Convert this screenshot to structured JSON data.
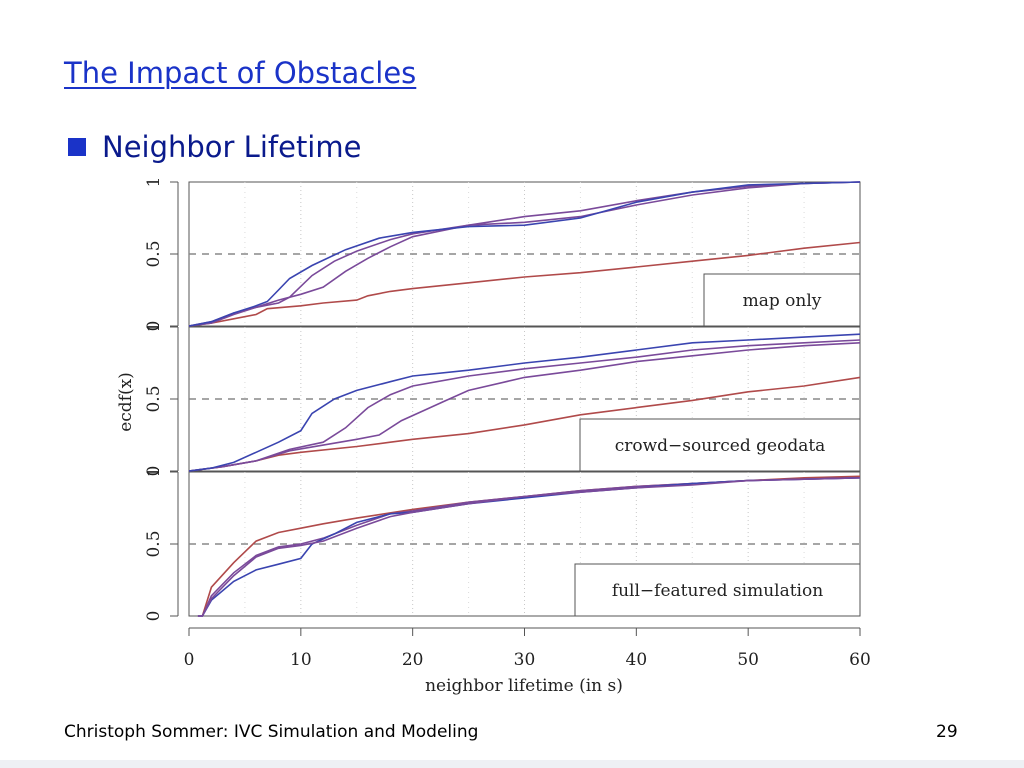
{
  "slide": {
    "title": "The Impact of Obstacles",
    "bullet": "Neighbor Lifetime",
    "footer_left": "Christoph Sommer: IVC Simulation and Modeling",
    "page_number": "29"
  },
  "colors": {
    "accent": "#1a33c8",
    "red_series": "#b04a4a",
    "blue_series": "#3a44b0",
    "purple_series": "#7a4a9a"
  },
  "chart_data": {
    "type": "line",
    "xlabel": "neighbor lifetime (in s)",
    "ylabel": "ecdf(x)",
    "xlim": [
      0,
      60
    ],
    "ylim": [
      0,
      1
    ],
    "x_ticks": [
      0,
      10,
      20,
      30,
      40,
      50,
      60
    ],
    "y_tick_labels": [
      "0",
      "0.5",
      "1"
    ],
    "reference_line": 0.5,
    "grid": "vertical dotted at x ticks",
    "panels": [
      {
        "label": "map only",
        "series": [
          {
            "color": "red",
            "points": [
              [
                0,
                0
              ],
              [
                2,
                0.02
              ],
              [
                4,
                0.05
              ],
              [
                6,
                0.08
              ],
              [
                7,
                0.12
              ],
              [
                10,
                0.14
              ],
              [
                12,
                0.16
              ],
              [
                15,
                0.18
              ],
              [
                16,
                0.21
              ],
              [
                18,
                0.24
              ],
              [
                20,
                0.26
              ],
              [
                25,
                0.3
              ],
              [
                30,
                0.34
              ],
              [
                35,
                0.37
              ],
              [
                40,
                0.41
              ],
              [
                45,
                0.45
              ],
              [
                50,
                0.49
              ],
              [
                55,
                0.54
              ],
              [
                60,
                0.58
              ]
            ]
          },
          {
            "color": "purple",
            "points": [
              [
                0,
                0
              ],
              [
                2,
                0.03
              ],
              [
                4,
                0.09
              ],
              [
                6,
                0.13
              ],
              [
                8,
                0.18
              ],
              [
                10,
                0.22
              ],
              [
                12,
                0.27
              ],
              [
                14,
                0.38
              ],
              [
                16,
                0.47
              ],
              [
                18,
                0.55
              ],
              [
                20,
                0.62
              ],
              [
                25,
                0.7
              ],
              [
                30,
                0.76
              ],
              [
                35,
                0.8
              ],
              [
                40,
                0.87
              ],
              [
                45,
                0.93
              ],
              [
                50,
                0.97
              ],
              [
                55,
                0.99
              ],
              [
                60,
                1.0
              ]
            ]
          },
          {
            "color": "purple",
            "points": [
              [
                0,
                0
              ],
              [
                2,
                0.02
              ],
              [
                4,
                0.08
              ],
              [
                6,
                0.13
              ],
              [
                8,
                0.16
              ],
              [
                9,
                0.2
              ],
              [
                11,
                0.35
              ],
              [
                13,
                0.45
              ],
              [
                15,
                0.52
              ],
              [
                18,
                0.6
              ],
              [
                20,
                0.64
              ],
              [
                25,
                0.7
              ],
              [
                30,
                0.72
              ],
              [
                35,
                0.76
              ],
              [
                40,
                0.84
              ],
              [
                45,
                0.91
              ],
              [
                50,
                0.96
              ],
              [
                55,
                0.99
              ],
              [
                60,
                1.0
              ]
            ]
          },
          {
            "color": "blue",
            "points": [
              [
                0,
                0
              ],
              [
                2,
                0.03
              ],
              [
                4,
                0.09
              ],
              [
                6,
                0.14
              ],
              [
                7,
                0.17
              ],
              [
                8,
                0.25
              ],
              [
                9,
                0.33
              ],
              [
                11,
                0.42
              ],
              [
                14,
                0.53
              ],
              [
                17,
                0.61
              ],
              [
                20,
                0.65
              ],
              [
                25,
                0.69
              ],
              [
                30,
                0.7
              ],
              [
                35,
                0.75
              ],
              [
                40,
                0.86
              ],
              [
                45,
                0.93
              ],
              [
                50,
                0.98
              ],
              [
                55,
                0.99
              ],
              [
                60,
                1.0
              ]
            ]
          }
        ]
      },
      {
        "label": "crowd−sourced geodata",
        "series": [
          {
            "color": "red",
            "points": [
              [
                0,
                0
              ],
              [
                3,
                0.03
              ],
              [
                6,
                0.07
              ],
              [
                8,
                0.11
              ],
              [
                10,
                0.13
              ],
              [
                15,
                0.17
              ],
              [
                18,
                0.2
              ],
              [
                20,
                0.22
              ],
              [
                25,
                0.26
              ],
              [
                30,
                0.32
              ],
              [
                35,
                0.39
              ],
              [
                40,
                0.44
              ],
              [
                45,
                0.49
              ],
              [
                50,
                0.55
              ],
              [
                55,
                0.59
              ],
              [
                60,
                0.65
              ]
            ]
          },
          {
            "color": "purple",
            "points": [
              [
                0,
                0
              ],
              [
                3,
                0.03
              ],
              [
                6,
                0.07
              ],
              [
                9,
                0.14
              ],
              [
                12,
                0.18
              ],
              [
                15,
                0.22
              ],
              [
                17,
                0.25
              ],
              [
                19,
                0.35
              ],
              [
                21,
                0.42
              ],
              [
                23,
                0.49
              ],
              [
                25,
                0.56
              ],
              [
                30,
                0.65
              ],
              [
                35,
                0.7
              ],
              [
                40,
                0.76
              ],
              [
                45,
                0.8
              ],
              [
                50,
                0.84
              ],
              [
                55,
                0.87
              ],
              [
                60,
                0.89
              ]
            ]
          },
          {
            "color": "purple",
            "points": [
              [
                0,
                0
              ],
              [
                3,
                0.03
              ],
              [
                6,
                0.07
              ],
              [
                9,
                0.15
              ],
              [
                12,
                0.2
              ],
              [
                14,
                0.3
              ],
              [
                16,
                0.44
              ],
              [
                18,
                0.53
              ],
              [
                20,
                0.59
              ],
              [
                25,
                0.66
              ],
              [
                30,
                0.71
              ],
              [
                35,
                0.75
              ],
              [
                40,
                0.79
              ],
              [
                45,
                0.84
              ],
              [
                50,
                0.87
              ],
              [
                55,
                0.89
              ],
              [
                60,
                0.91
              ]
            ]
          },
          {
            "color": "blue",
            "points": [
              [
                0,
                0
              ],
              [
                2,
                0.02
              ],
              [
                4,
                0.06
              ],
              [
                6,
                0.13
              ],
              [
                8,
                0.2
              ],
              [
                10,
                0.28
              ],
              [
                11,
                0.4
              ],
              [
                13,
                0.5
              ],
              [
                15,
                0.56
              ],
              [
                18,
                0.62
              ],
              [
                20,
                0.66
              ],
              [
                25,
                0.7
              ],
              [
                30,
                0.75
              ],
              [
                35,
                0.79
              ],
              [
                40,
                0.84
              ],
              [
                45,
                0.89
              ],
              [
                50,
                0.91
              ],
              [
                55,
                0.93
              ],
              [
                60,
                0.95
              ]
            ]
          }
        ]
      },
      {
        "label": "full−featured simulation",
        "series": [
          {
            "color": "red",
            "points": [
              [
                0.8,
                0
              ],
              [
                1.2,
                0
              ],
              [
                2,
                0.2
              ],
              [
                4,
                0.37
              ],
              [
                6,
                0.52
              ],
              [
                8,
                0.58
              ],
              [
                10,
                0.61
              ],
              [
                12,
                0.64
              ],
              [
                15,
                0.68
              ],
              [
                20,
                0.74
              ],
              [
                25,
                0.79
              ],
              [
                30,
                0.83
              ],
              [
                35,
                0.87
              ],
              [
                40,
                0.9
              ],
              [
                45,
                0.92
              ],
              [
                50,
                0.94
              ],
              [
                55,
                0.96
              ],
              [
                60,
                0.97
              ]
            ]
          },
          {
            "color": "purple",
            "points": [
              [
                0.8,
                0
              ],
              [
                1.2,
                0
              ],
              [
                2,
                0.14
              ],
              [
                4,
                0.3
              ],
              [
                6,
                0.42
              ],
              [
                8,
                0.48
              ],
              [
                10,
                0.5
              ],
              [
                12,
                0.54
              ],
              [
                15,
                0.63
              ],
              [
                18,
                0.71
              ],
              [
                20,
                0.73
              ],
              [
                25,
                0.79
              ],
              [
                30,
                0.83
              ],
              [
                35,
                0.87
              ],
              [
                40,
                0.9
              ],
              [
                45,
                0.92
              ],
              [
                50,
                0.94
              ],
              [
                55,
                0.95
              ],
              [
                60,
                0.96
              ]
            ]
          },
          {
            "color": "blue",
            "points": [
              [
                0.8,
                0
              ],
              [
                1.2,
                0
              ],
              [
                2,
                0.11
              ],
              [
                4,
                0.24
              ],
              [
                6,
                0.32
              ],
              [
                8,
                0.36
              ],
              [
                10,
                0.4
              ],
              [
                11,
                0.5
              ],
              [
                13,
                0.57
              ],
              [
                15,
                0.65
              ],
              [
                18,
                0.71
              ],
              [
                20,
                0.72
              ],
              [
                25,
                0.78
              ],
              [
                30,
                0.82
              ],
              [
                35,
                0.86
              ],
              [
                40,
                0.89
              ],
              [
                45,
                0.92
              ],
              [
                50,
                0.94
              ],
              [
                55,
                0.95
              ],
              [
                60,
                0.96
              ]
            ]
          },
          {
            "color": "purple",
            "points": [
              [
                0.8,
                0
              ],
              [
                1.2,
                0
              ],
              [
                2,
                0.12
              ],
              [
                4,
                0.28
              ],
              [
                6,
                0.41
              ],
              [
                8,
                0.47
              ],
              [
                10,
                0.49
              ],
              [
                12,
                0.52
              ],
              [
                15,
                0.61
              ],
              [
                18,
                0.69
              ],
              [
                20,
                0.72
              ],
              [
                25,
                0.78
              ],
              [
                30,
                0.83
              ],
              [
                35,
                0.86
              ],
              [
                40,
                0.89
              ],
              [
                45,
                0.91
              ],
              [
                50,
                0.94
              ],
              [
                55,
                0.95
              ],
              [
                60,
                0.96
              ]
            ]
          }
        ]
      }
    ]
  }
}
